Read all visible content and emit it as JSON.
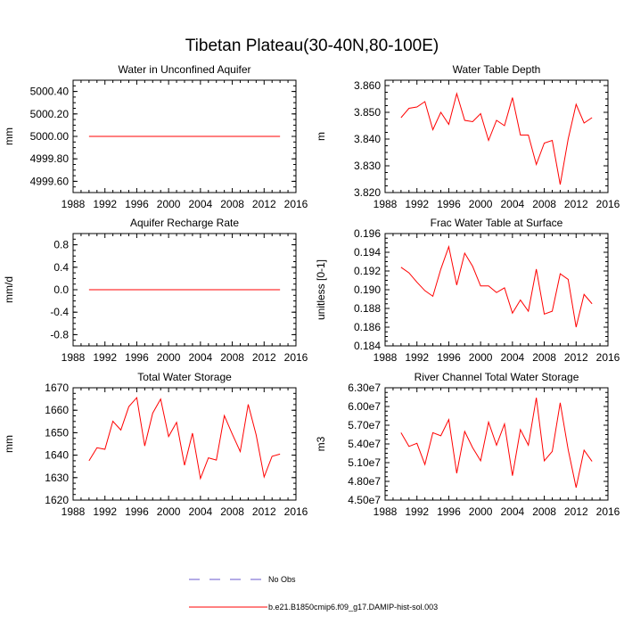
{
  "title": "Tibetan Plateau(30-40N,80-100E)",
  "series_color": "#ff0000",
  "obs_color": "#6a5acd",
  "legend": {
    "obs_label": "No Obs",
    "model_label": "b.e21.B1850cmip6.f09_g17.DAMIP-hist-sol.003"
  },
  "chart_data": [
    {
      "type": "line",
      "title": "Water in Unconfined Aquifer",
      "ylabel": "mm",
      "xlim": [
        1988,
        2016
      ],
      "ylim": [
        4999.5,
        5000.5
      ],
      "xticks": [
        1988,
        1992,
        1996,
        2000,
        2004,
        2008,
        2012,
        2016
      ],
      "yticks": [
        4999.6,
        4999.8,
        5000.0,
        5000.2,
        5000.4
      ],
      "ytick_labels": [
        "4999.60",
        "4999.80",
        "5000.00",
        "5000.20",
        "5000.40"
      ],
      "x": [
        1990,
        1991,
        1992,
        1993,
        1994,
        1995,
        1996,
        1997,
        1998,
        1999,
        2000,
        2001,
        2002,
        2003,
        2004,
        2005,
        2006,
        2007,
        2008,
        2009,
        2010,
        2011,
        2012,
        2013,
        2014
      ],
      "y": [
        5000.0,
        5000.0,
        5000.0,
        5000.0,
        5000.0,
        5000.0,
        5000.0,
        5000.0,
        5000.0,
        5000.0,
        5000.0,
        5000.0,
        5000.0,
        5000.0,
        5000.0,
        5000.0,
        5000.0,
        5000.0,
        5000.0,
        5000.0,
        5000.0,
        5000.0,
        5000.0,
        5000.0,
        5000.0
      ]
    },
    {
      "type": "line",
      "title": "Water Table Depth",
      "ylabel": "m",
      "xlim": [
        1988,
        2016
      ],
      "ylim": [
        3.82,
        3.862
      ],
      "xticks": [
        1988,
        1992,
        1996,
        2000,
        2004,
        2008,
        2012,
        2016
      ],
      "yticks": [
        3.82,
        3.83,
        3.84,
        3.85,
        3.86
      ],
      "ytick_labels": [
        "3.820",
        "3.830",
        "3.840",
        "3.850",
        "3.860"
      ],
      "x": [
        1990,
        1991,
        1992,
        1993,
        1994,
        1995,
        1996,
        1997,
        1998,
        1999,
        2000,
        2001,
        2002,
        2003,
        2004,
        2005,
        2006,
        2007,
        2008,
        2009,
        2010,
        2011,
        2012,
        2013,
        2014
      ],
      "y": [
        3.848,
        3.8515,
        3.852,
        3.854,
        3.8435,
        3.85,
        3.8455,
        3.857,
        3.847,
        3.8465,
        3.8495,
        3.8395,
        3.847,
        3.845,
        3.8555,
        3.8415,
        3.8415,
        3.8305,
        3.8385,
        3.8395,
        3.823,
        3.84,
        3.853,
        3.846,
        3.848
      ]
    },
    {
      "type": "line",
      "title": "Aquifer Recharge Rate",
      "ylabel": "mm/d",
      "xlim": [
        1988,
        2016
      ],
      "ylim": [
        -1.0,
        1.0
      ],
      "xticks": [
        1988,
        1992,
        1996,
        2000,
        2004,
        2008,
        2012,
        2016
      ],
      "yticks": [
        -0.8,
        -0.4,
        0.0,
        0.4,
        0.8
      ],
      "ytick_labels": [
        "-0.8",
        "-0.4",
        "0.0",
        "0.4",
        "0.8"
      ],
      "x": [
        1990,
        1991,
        1992,
        1993,
        1994,
        1995,
        1996,
        1997,
        1998,
        1999,
        2000,
        2001,
        2002,
        2003,
        2004,
        2005,
        2006,
        2007,
        2008,
        2009,
        2010,
        2011,
        2012,
        2013,
        2014
      ],
      "y": [
        0,
        0,
        0,
        0,
        0,
        0,
        0,
        0,
        0,
        0,
        0,
        0,
        0,
        0,
        0,
        0,
        0,
        0,
        0,
        0,
        0,
        0,
        0,
        0,
        0
      ]
    },
    {
      "type": "line",
      "title": "Frac Water Table at Surface",
      "ylabel": "unitless [0-1]",
      "xlim": [
        1988,
        2016
      ],
      "ylim": [
        0.184,
        0.196
      ],
      "xticks": [
        1988,
        1992,
        1996,
        2000,
        2004,
        2008,
        2012,
        2016
      ],
      "yticks": [
        0.184,
        0.186,
        0.188,
        0.19,
        0.192,
        0.194,
        0.196
      ],
      "ytick_labels": [
        "0.184",
        "0.186",
        "0.188",
        "0.190",
        "0.192",
        "0.194",
        "0.196"
      ],
      "x": [
        1990,
        1991,
        1992,
        1993,
        1994,
        1995,
        1996,
        1997,
        1998,
        1999,
        2000,
        2001,
        2002,
        2003,
        2004,
        2005,
        2006,
        2007,
        2008,
        2009,
        2010,
        2011,
        2012,
        2013,
        2014
      ],
      "y": [
        0.1924,
        0.1918,
        0.1908,
        0.1899,
        0.1893,
        0.1922,
        0.1946,
        0.1905,
        0.1939,
        0.1925,
        0.1904,
        0.1904,
        0.1897,
        0.1902,
        0.1875,
        0.1889,
        0.1877,
        0.1922,
        0.1874,
        0.1877,
        0.1917,
        0.1911,
        0.186,
        0.1895,
        0.1885
      ]
    },
    {
      "type": "line",
      "title": "Total Water Storage",
      "ylabel": "mm",
      "xlim": [
        1988,
        2016
      ],
      "ylim": [
        1620,
        1670
      ],
      "xticks": [
        1988,
        1992,
        1996,
        2000,
        2004,
        2008,
        2012,
        2016
      ],
      "yticks": [
        1620,
        1630,
        1640,
        1650,
        1660,
        1670
      ],
      "ytick_labels": [
        "1620",
        "1630",
        "1640",
        "1650",
        "1660",
        "1670"
      ],
      "x": [
        1990,
        1991,
        1992,
        1993,
        1994,
        1995,
        1996,
        1997,
        1998,
        1999,
        2000,
        2001,
        2002,
        2003,
        2004,
        2005,
        2006,
        2007,
        2008,
        2009,
        2010,
        2011,
        2012,
        2013,
        2014
      ],
      "y": [
        1637.5,
        1643.3,
        1642.6,
        1655.1,
        1651.2,
        1661.6,
        1665.6,
        1644.1,
        1658.7,
        1665.0,
        1648.3,
        1654.6,
        1635.5,
        1649.8,
        1629.6,
        1638.8,
        1637.8,
        1657.6,
        1649.4,
        1641.6,
        1662.6,
        1649.0,
        1630.3,
        1639.5,
        1640.5
      ]
    },
    {
      "type": "line",
      "title": "River Channel Total Water Storage",
      "ylabel": "m3",
      "xlim": [
        1988,
        2016
      ],
      "ylim": [
        45000000,
        63000000
      ],
      "xticks": [
        1988,
        1992,
        1996,
        2000,
        2004,
        2008,
        2012,
        2016
      ],
      "yticks": [
        45000000,
        48000000,
        51000000,
        54000000,
        57000000,
        60000000,
        63000000
      ],
      "ytick_labels": [
        "4.50e7",
        "4.80e7",
        "5.10e7",
        "5.40e7",
        "5.70e7",
        "6.00e7",
        "6.30e7"
      ],
      "x": [
        1990,
        1991,
        1992,
        1993,
        1994,
        1995,
        1996,
        1997,
        1998,
        1999,
        2000,
        2001,
        2002,
        2003,
        2004,
        2005,
        2006,
        2007,
        2008,
        2009,
        2010,
        2011,
        2012,
        2013,
        2014
      ],
      "y": [
        55800000,
        53600000,
        54100000,
        50700000,
        55800000,
        55300000,
        57900000,
        49300000,
        56000000,
        53400000,
        51300000,
        57500000,
        53800000,
        57200000,
        48900000,
        56300000,
        53800000,
        61400000,
        51300000,
        52800000,
        60600000,
        53100000,
        47000000,
        53000000,
        51200000
      ]
    }
  ]
}
